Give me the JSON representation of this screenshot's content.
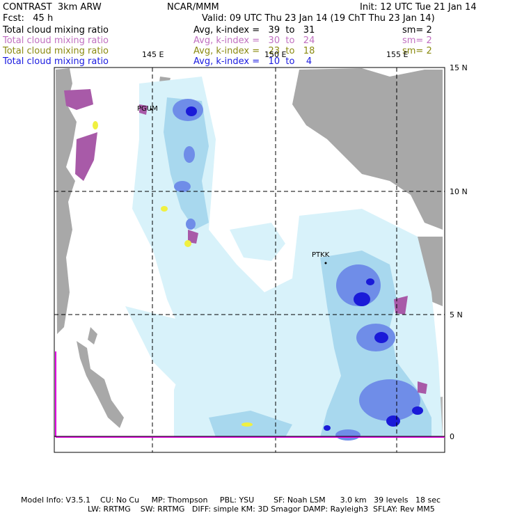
{
  "header": {
    "model": "CONTRAST  3km ARW",
    "org": "NCAR/MMM",
    "init": "Init: 12 UTC Tue 21 Jan 14",
    "fcst": "Fcst:   45 h",
    "valid": "Valid: 09 UTC Thu 23 Jan 14 (19 ChT Thu 23 Jan 14)"
  },
  "fields": [
    {
      "name": "Total cloud mixing ratio",
      "range": "Avg, k-index =   39  to   31",
      "sm": "sm= 2",
      "color": "#000000"
    },
    {
      "name": "Total cloud mixing ratio",
      "range": "Avg, k-index =   30  to   24",
      "sm": "sm= 2",
      "color": "#c070c0"
    },
    {
      "name": "Total cloud mixing ratio",
      "range": "Avg, k-index =   23  to   18",
      "sm": "sm= 2",
      "color": "#8a8a10"
    },
    {
      "name": "Total cloud mixing ratio",
      "range": "Avg, k-index =   10  to    4",
      "sm": "sm= 2",
      "color": "#1a1ae0"
    }
  ],
  "map": {
    "lon_labels": [
      "145 E",
      "150 E",
      "155 E"
    ],
    "lat_labels": [
      "15 N",
      "10 N",
      "5 N",
      "0"
    ],
    "stations": [
      "PGUM",
      "PTKK"
    ]
  },
  "footer": {
    "line1": "Model Info: V3.5.1    CU: No Cu     MP: Thompson     PBL: YSU        SF: Noah LSM      3.0 km   39 levels   18 sec",
    "line2": "LW: RRTMG    SW: RRTMG   DIFF: simple KM: 3D Smagor DAMP: Rayleigh3  SFLAY: Rev MM5"
  },
  "colors": {
    "land": "#a8a8a8",
    "cloud_light": "#d8f2fa",
    "cloud_mid": "#a8d8ee",
    "cloud_blue": "#6f8de8",
    "cloud_dark": "#1a1ad8",
    "mid_purple": "#a85aa8",
    "low_yellow": "#f0f040",
    "magenta_line": "#e000e0"
  }
}
